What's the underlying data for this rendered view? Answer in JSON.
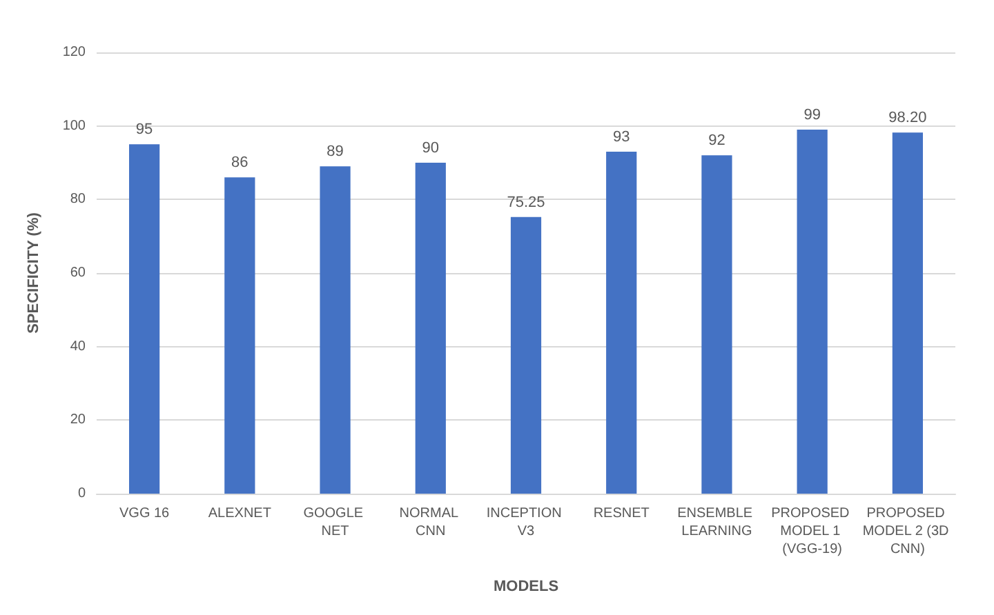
{
  "chart_data": {
    "type": "bar",
    "xlabel": "MODELS",
    "ylabel": "SPECIFICITY (%)",
    "categories": [
      "VGG 16",
      "ALEXNET",
      "GOOGLE NET",
      "NORMAL CNN",
      "INCEPTION V3",
      "RESNET",
      "ENSEMBLE LEARNING",
      "PROPOSED MODEL 1 (VGG-19)",
      "PROPOSED MODEL 2 (3D CNN)"
    ],
    "values": [
      95,
      86,
      89,
      90,
      75.25,
      93,
      92,
      99,
      98.2
    ],
    "value_labels": [
      "95",
      "86",
      "89",
      "90",
      "75.25",
      "93",
      "92",
      "99",
      "98.20"
    ],
    "color": "#4472c4",
    "ylim": [
      0,
      120
    ],
    "yticks": [
      0,
      20,
      40,
      60,
      80,
      100,
      120
    ],
    "grid": "y"
  }
}
